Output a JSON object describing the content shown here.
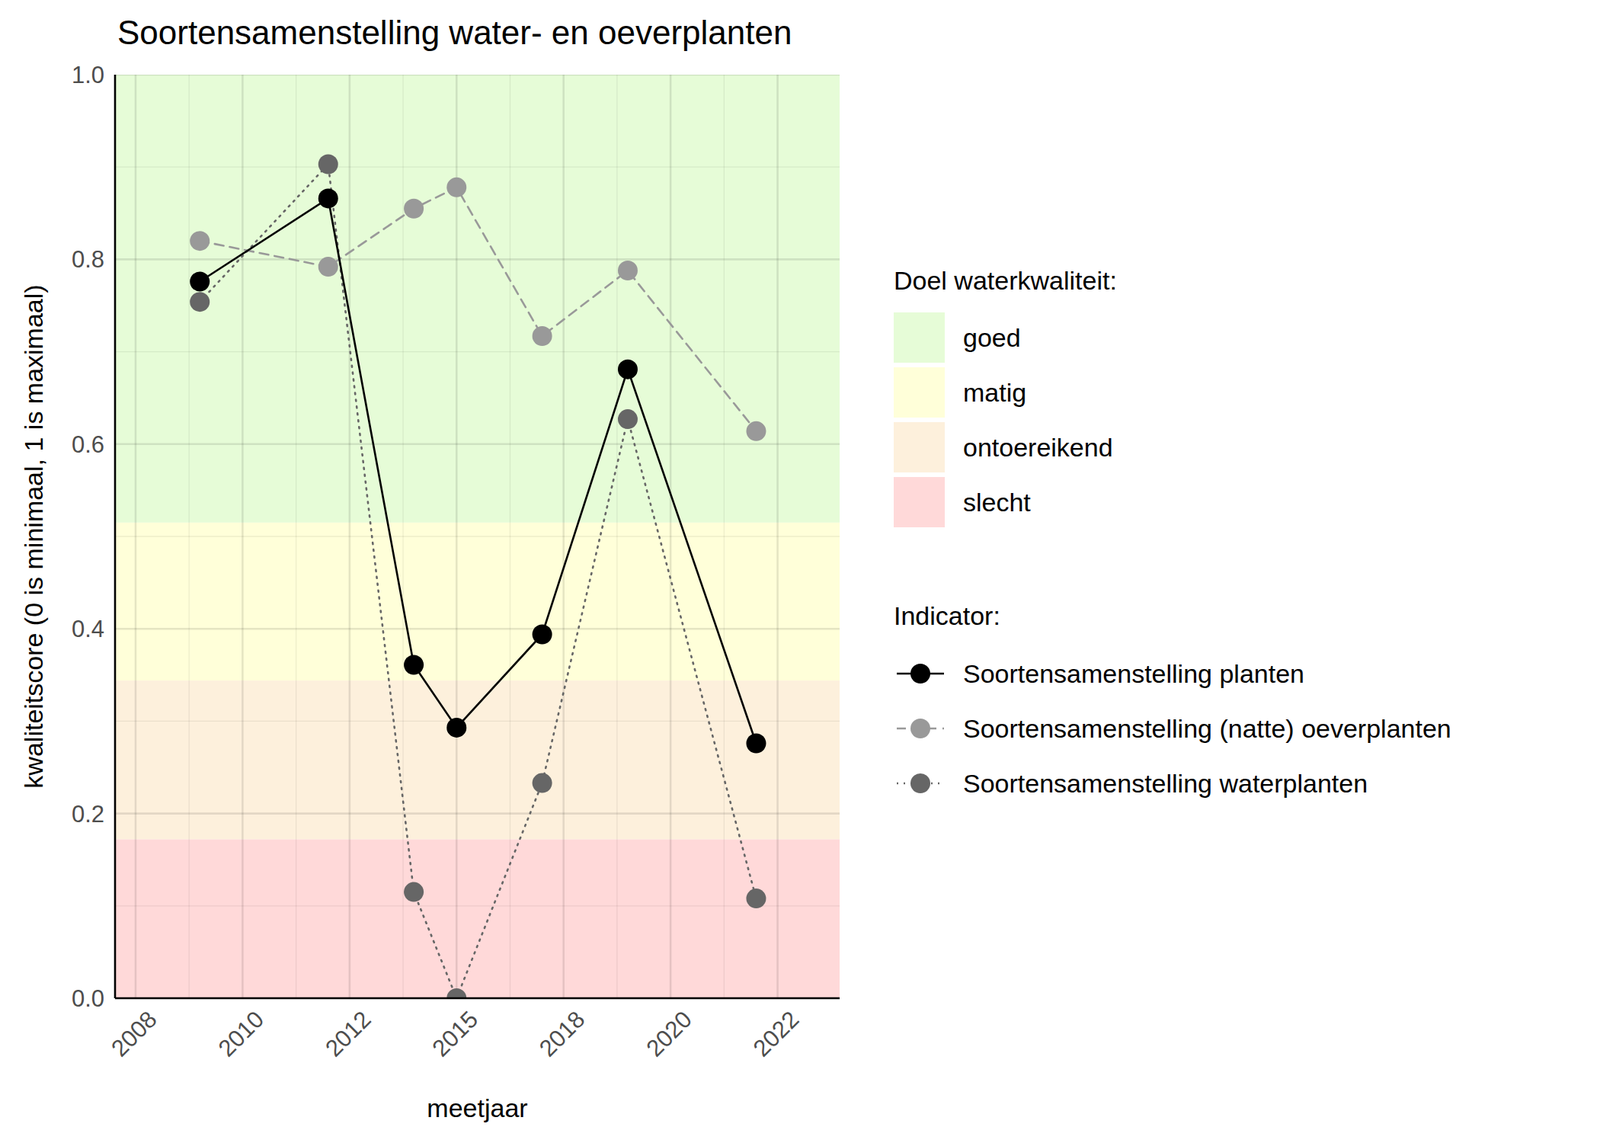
{
  "chart_data": {
    "type": "line",
    "title": "Soortensamenstelling water- en oeverplanten",
    "x_label": "meetjaar",
    "y_label": "kwaliteitscore (0 is minimaal, 1 is maximaal)",
    "x": [
      2009,
      2012,
      2014,
      2015,
      2017,
      2019,
      2022
    ],
    "series": [
      {
        "name": "Soortensamenstelling planten",
        "color": "#000000",
        "line_style": "solid",
        "marker": "circle",
        "values": [
          0.776,
          0.866,
          0.361,
          0.293,
          0.394,
          0.681,
          0.276
        ]
      },
      {
        "name": "Soortensamenstelling (natte) oeverplanten",
        "color": "#999999",
        "line_style": "dashed",
        "marker": "circle",
        "values": [
          0.82,
          0.792,
          0.855,
          0.878,
          0.717,
          0.788,
          0.614
        ]
      },
      {
        "name": "Soortensamenstelling waterplanten",
        "color": "#666666",
        "line_style": "dotted",
        "marker": "circle",
        "values": [
          0.754,
          0.903,
          0.115,
          0.0,
          0.233,
          0.627,
          0.108
        ]
      }
    ],
    "bands_title": "Doel waterkwaliteit:",
    "bands": [
      {
        "name": "goed",
        "from": 0.515,
        "to": 1.0,
        "color": "#e6fcd7"
      },
      {
        "name": "matig",
        "from": 0.344,
        "to": 0.515,
        "color": "#ffffd9"
      },
      {
        "name": "ontoereikend",
        "from": 0.172,
        "to": 0.344,
        "color": "#fdf0dc"
      },
      {
        "name": "slecht",
        "from": 0.0,
        "to": 0.172,
        "color": "#ffd9d9"
      }
    ],
    "series_title": "Indicator:",
    "xlim": [
      2007.02,
      2023.95
    ],
    "xticks": [
      {
        "value": 2007.5,
        "label": "2008"
      },
      {
        "value": 2010,
        "label": "2010"
      },
      {
        "value": 2012.5,
        "label": "2012"
      },
      {
        "value": 2015,
        "label": "2015"
      },
      {
        "value": 2017.5,
        "label": "2018"
      },
      {
        "value": 2020,
        "label": "2020"
      },
      {
        "value": 2022.5,
        "label": "2022"
      }
    ],
    "ylim": [
      0,
      1
    ],
    "yticks": [
      {
        "value": 0,
        "label": "0.0"
      },
      0.2,
      0.4,
      0.6,
      0.8,
      {
        "value": 1,
        "label": "1.0"
      }
    ],
    "grid": true,
    "legend": "right"
  }
}
